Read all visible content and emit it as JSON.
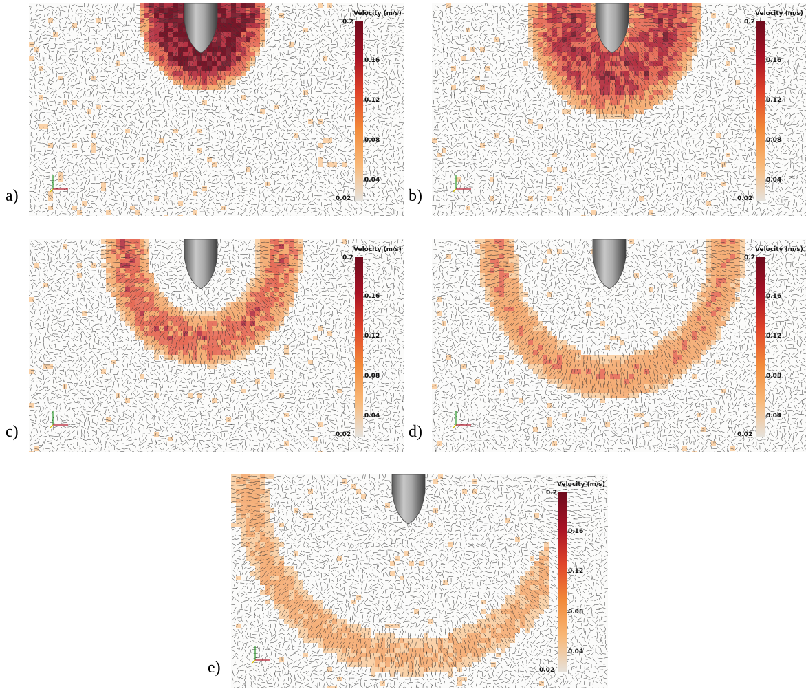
{
  "colorbar": {
    "title": "Velocity (m/s)",
    "max_label": "0.2",
    "min_label": "0.02",
    "ticks": [
      "0.16",
      "0.12",
      "0.08",
      "0.04"
    ],
    "colors": [
      "#e6e2dc",
      "#f8b878",
      "#f28a3a",
      "#e0452a",
      "#a81225",
      "#6e0b1d"
    ]
  },
  "panels": [
    {
      "label": "a)",
      "wave": "compact blob below tip"
    },
    {
      "label": "b)",
      "wave": "expanding crescent"
    },
    {
      "label": "c)",
      "wave": "crescent with hollow core"
    },
    {
      "label": "d)",
      "wave": "wide U-shaped front"
    },
    {
      "label": "e)",
      "wave": "faint wide U-shaped front"
    }
  ]
}
